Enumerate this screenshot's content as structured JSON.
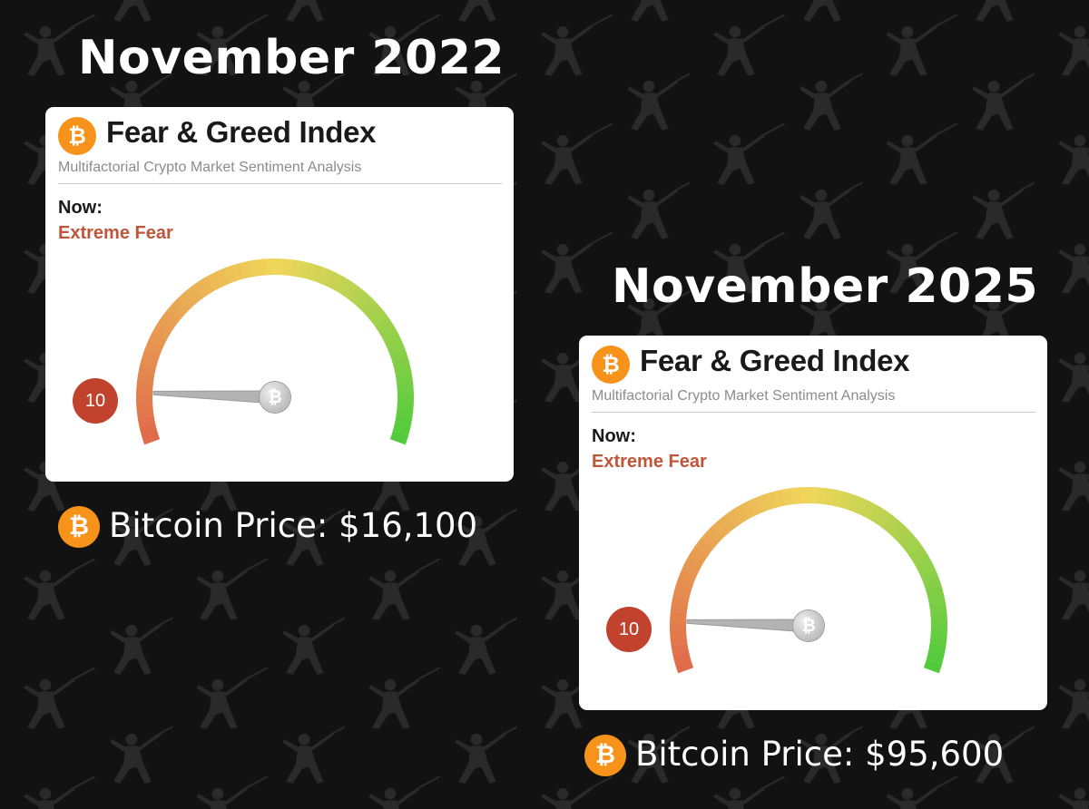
{
  "colors": {
    "background": "#121212",
    "card": "#ffffff",
    "bitcoin_orange": "#f7931a",
    "extreme_fear_text": "#c0553a",
    "value_badge": "#c1432d",
    "gauge_low": "#e0694a",
    "gauge_mid": "#f0d65a",
    "gauge_high": "#4ecb3c"
  },
  "icons": {
    "coin": "bitcoin-icon",
    "coin_symbol": "₿"
  },
  "panels": [
    {
      "heading": "November 2022",
      "card": {
        "title": "Fear & Greed Index",
        "subtitle": "Multifactorial Crypto Market Sentiment Analysis",
        "now_label": "Now:",
        "now_value": "Extreme Fear",
        "index_value": "10",
        "index_fraction": 0.1
      },
      "price_label": "Bitcoin Price: $16,100"
    },
    {
      "heading": "November 2025",
      "card": {
        "title": "Fear & Greed Index",
        "subtitle": "Multifactorial Crypto Market Sentiment Analysis",
        "now_label": "Now:",
        "now_value": "Extreme Fear",
        "index_value": "10",
        "index_fraction": 0.1
      },
      "price_label": "Bitcoin Price: $95,600"
    }
  ]
}
